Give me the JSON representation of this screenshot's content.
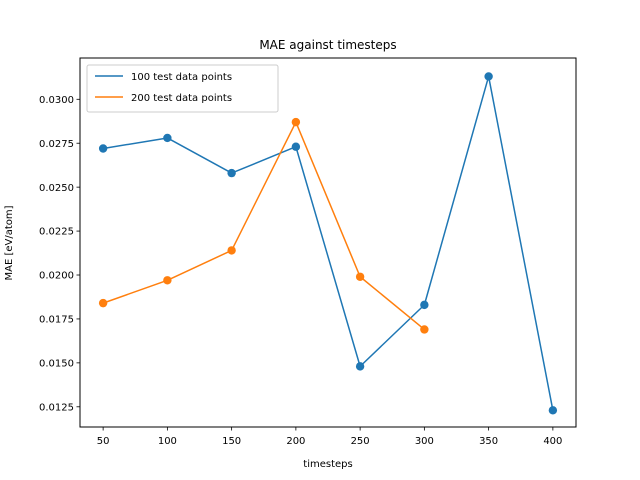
{
  "chart_data": {
    "type": "line",
    "title": "MAE against timesteps",
    "xlabel": "timesteps",
    "ylabel": "MAE [eV/atom]",
    "xlim": [
      32,
      418
    ],
    "ylim": [
      0.01135,
      0.03235
    ],
    "xticks": [
      50,
      100,
      150,
      200,
      250,
      300,
      350,
      400
    ],
    "yticks": [
      0.0125,
      0.015,
      0.0175,
      0.02,
      0.0225,
      0.025,
      0.0275,
      0.03
    ],
    "ytick_labels": [
      "0.0125",
      "0.0150",
      "0.0175",
      "0.0200",
      "0.0225",
      "0.0250",
      "0.0275",
      "0.0300"
    ],
    "grid": false,
    "legend": "top-left",
    "series": [
      {
        "name": "100 test data points",
        "color": "#1f77b4",
        "x": [
          50,
          100,
          150,
          200,
          250,
          300,
          350,
          400
        ],
        "y": [
          0.0272,
          0.0278,
          0.0258,
          0.0273,
          0.0148,
          0.0183,
          0.0313,
          0.0123
        ]
      },
      {
        "name": "200 test data points",
        "color": "#ff7f0e",
        "x": [
          50,
          100,
          150,
          200,
          250,
          300
        ],
        "y": [
          0.0184,
          0.0197,
          0.0214,
          0.0287,
          0.0199,
          0.0169
        ]
      }
    ]
  }
}
